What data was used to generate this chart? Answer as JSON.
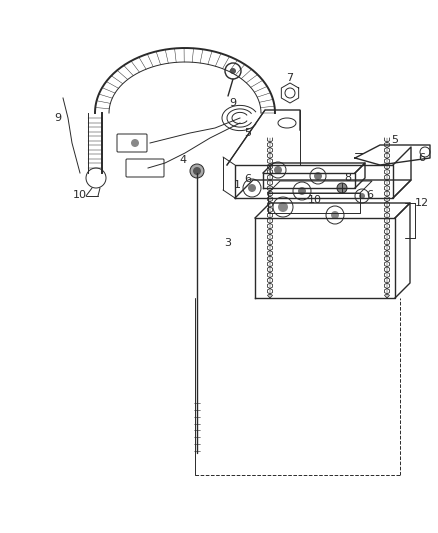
{
  "bg_color": "#ffffff",
  "line_color": "#2a2a2a",
  "fig_width": 4.38,
  "fig_height": 5.33,
  "dpi": 100
}
